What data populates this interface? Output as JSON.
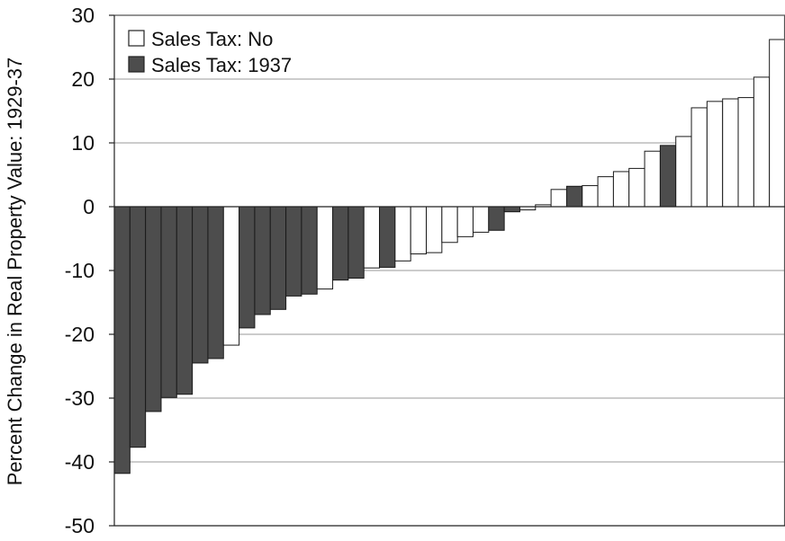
{
  "chart_data": {
    "type": "bar",
    "title": "",
    "xlabel": "",
    "ylabel": "Percent Change in Real Property Value:  1929-37",
    "ylim": [
      -50,
      30
    ],
    "yticks": [
      30,
      20,
      10,
      0,
      -10,
      -20,
      -30,
      -40,
      -50
    ],
    "grid": true,
    "legend_position": "top-left",
    "legend": [
      {
        "label": "Sales Tax: No",
        "color": "#ffffff"
      },
      {
        "label": "Sales Tax: 1937",
        "color": "#4d4d4d"
      }
    ],
    "bar_colors": {
      "No": "#ffffff",
      "1937": "#4d4d4d"
    },
    "bars": [
      {
        "value": -41.8,
        "group": "1937"
      },
      {
        "value": -37.7,
        "group": "1937"
      },
      {
        "value": -32.1,
        "group": "1937"
      },
      {
        "value": -29.9,
        "group": "1937"
      },
      {
        "value": -29.4,
        "group": "1937"
      },
      {
        "value": -24.5,
        "group": "1937"
      },
      {
        "value": -23.8,
        "group": "1937"
      },
      {
        "value": -21.7,
        "group": "No"
      },
      {
        "value": -19.0,
        "group": "1937"
      },
      {
        "value": -16.9,
        "group": "1937"
      },
      {
        "value": -16.1,
        "group": "1937"
      },
      {
        "value": -14.0,
        "group": "1937"
      },
      {
        "value": -13.7,
        "group": "1937"
      },
      {
        "value": -12.9,
        "group": "No"
      },
      {
        "value": -11.5,
        "group": "1937"
      },
      {
        "value": -11.2,
        "group": "1937"
      },
      {
        "value": -9.6,
        "group": "No"
      },
      {
        "value": -9.5,
        "group": "1937"
      },
      {
        "value": -8.5,
        "group": "No"
      },
      {
        "value": -7.4,
        "group": "No"
      },
      {
        "value": -7.2,
        "group": "No"
      },
      {
        "value": -5.6,
        "group": "No"
      },
      {
        "value": -4.7,
        "group": "No"
      },
      {
        "value": -4.0,
        "group": "No"
      },
      {
        "value": -3.7,
        "group": "1937"
      },
      {
        "value": -0.8,
        "group": "1937"
      },
      {
        "value": -0.5,
        "group": "No"
      },
      {
        "value": 0.3,
        "group": "No"
      },
      {
        "value": 2.7,
        "group": "No"
      },
      {
        "value": 3.2,
        "group": "1937"
      },
      {
        "value": 3.3,
        "group": "No"
      },
      {
        "value": 4.7,
        "group": "No"
      },
      {
        "value": 5.5,
        "group": "No"
      },
      {
        "value": 6.0,
        "group": "No"
      },
      {
        "value": 8.7,
        "group": "No"
      },
      {
        "value": 9.6,
        "group": "1937"
      },
      {
        "value": 11.0,
        "group": "No"
      },
      {
        "value": 15.5,
        "group": "No"
      },
      {
        "value": 16.5,
        "group": "No"
      },
      {
        "value": 16.9,
        "group": "No"
      },
      {
        "value": 17.1,
        "group": "No"
      },
      {
        "value": 20.3,
        "group": "No"
      },
      {
        "value": 26.2,
        "group": "No"
      }
    ]
  }
}
